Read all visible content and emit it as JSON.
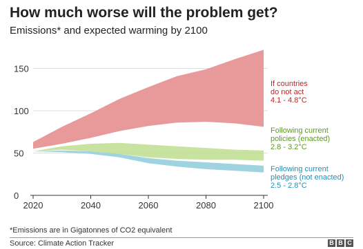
{
  "header": {
    "title": "How much worse will the problem get?",
    "subtitle": "Emissions* and expected warming by 2100"
  },
  "footer": {
    "footnote": "*Emissions are in Gigatonnes of CO2 equivalent",
    "source": "Source: Climate Action Tracker",
    "logo_letters": [
      "B",
      "B",
      "C"
    ]
  },
  "chart_data": {
    "type": "area",
    "title": "How much worse will the problem get?",
    "subtitle": "Emissions* and expected warming by 2100",
    "xlim": [
      2020,
      2100
    ],
    "ylim": [
      0,
      170
    ],
    "xticks": [
      2020,
      2040,
      2060,
      2080,
      2100
    ],
    "yticks": [
      0,
      50,
      100,
      150
    ],
    "grid": true,
    "legend_placement": "right, inline labels",
    "series": [
      {
        "label_lines": [
          "If countries",
          "do not act",
          "4.1 - 4.8°C"
        ],
        "color": "#e8999a",
        "text_color": "#b72727",
        "x": [
          2020,
          2030,
          2040,
          2050,
          2060,
          2070,
          2080,
          2090,
          2100
        ],
        "upper": [
          63,
          81,
          97,
          114,
          128,
          141,
          149,
          161,
          172
        ],
        "lower": [
          55,
          61,
          68,
          76,
          82,
          86,
          87,
          85,
          81
        ]
      },
      {
        "label_lines": [
          "Following current",
          "policies (enacted)",
          "2.8 - 3.2°C"
        ],
        "color": "#bedd8e",
        "text_color": "#5a9a1c",
        "x": [
          2020,
          2030,
          2040,
          2050,
          2060,
          2070,
          2080,
          2090,
          2100
        ],
        "upper": [
          52,
          58,
          61,
          62,
          60,
          58,
          56,
          54,
          53
        ],
        "lower": [
          52,
          54,
          52,
          49,
          45,
          43,
          42,
          42,
          41
        ]
      },
      {
        "label_lines": [
          "Following current",
          "pledges (not enacted)",
          "2.5 - 2.8°C"
        ],
        "color": "#9fd3df",
        "text_color": "#1f8fb3",
        "x": [
          2020,
          2030,
          2040,
          2050,
          2060,
          2070,
          2080,
          2090,
          2100
        ],
        "upper": [
          52,
          53,
          52,
          49,
          44,
          41,
          39,
          37,
          35
        ],
        "lower": [
          52,
          51,
          49,
          45,
          38,
          34,
          31,
          29,
          27
        ]
      }
    ],
    "gap_fill_color": "#c4dfbe"
  }
}
